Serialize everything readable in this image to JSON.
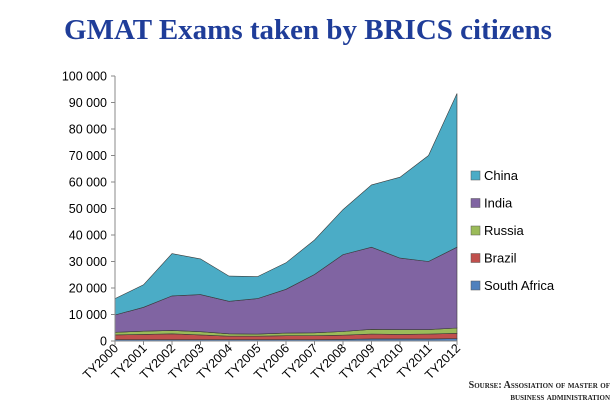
{
  "title": "GMAT Exams taken by BRICS citizens",
  "source": {
    "line1": "Sourse: Assosiation of master of",
    "line2": "business administration"
  },
  "chart_data": {
    "type": "area",
    "stacked": true,
    "title": "GMAT Exams taken by BRICS citizens",
    "xlabel": "",
    "ylabel": "",
    "ylim": [
      0,
      100000
    ],
    "yticks": [
      "0",
      "10 000",
      "20 000",
      "30 000",
      "40 000",
      "50 000",
      "60 000",
      "70 000",
      "80 000",
      "90 000",
      "100 000"
    ],
    "categories": [
      "TY2000",
      "TY2001",
      "TY2002",
      "TY2003",
      "TY2004",
      "TY2005",
      "TY2006",
      "TY2007",
      "TY2008",
      "TY2009",
      "TY2010",
      "TY2011",
      "TY2012"
    ],
    "legend_position": "right",
    "series": [
      {
        "name": "South Africa",
        "color": "#4f81bd",
        "values": [
          500,
          500,
          500,
          500,
          500,
          500,
          500,
          500,
          600,
          800,
          800,
          800,
          900
        ]
      },
      {
        "name": "Brazil",
        "color": "#c0504d",
        "values": [
          1800,
          2000,
          2200,
          1800,
          1300,
          1300,
          1500,
          1500,
          1600,
          1800,
          1700,
          1800,
          2000
        ]
      },
      {
        "name": "Russia",
        "color": "#9bbb59",
        "values": [
          1000,
          1200,
          1300,
          1200,
          900,
          800,
          1000,
          1100,
          1400,
          1800,
          1800,
          1700,
          2000
        ]
      },
      {
        "name": "India",
        "color": "#8064a2",
        "values": [
          6500,
          9000,
          13000,
          14000,
          12300,
          13400,
          16500,
          22000,
          29000,
          31000,
          27000,
          25700,
          30500
        ]
      },
      {
        "name": "China",
        "color": "#4bacc6",
        "values": [
          6200,
          8500,
          16000,
          13500,
          9500,
          8300,
          10000,
          13000,
          17000,
          23500,
          30500,
          40000,
          58000
        ]
      }
    ]
  }
}
